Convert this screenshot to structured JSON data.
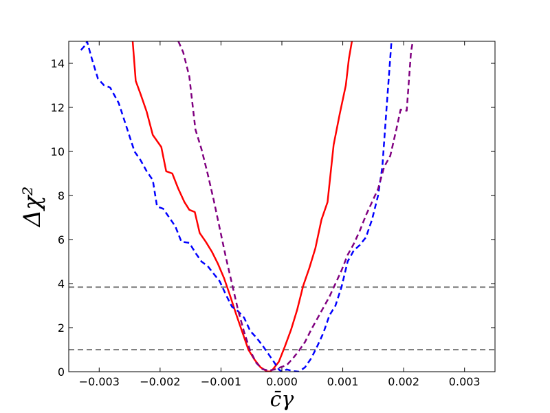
{
  "chart_data": {
    "type": "line",
    "title": "",
    "xlabel": "c̄γ",
    "ylabel": "Δχ²",
    "xlim": [
      -0.0035,
      0.0035
    ],
    "ylim": [
      0,
      15
    ],
    "grid": false,
    "x_ticks": [
      -0.003,
      -0.002,
      -0.001,
      0.0,
      0.001,
      0.002,
      0.003
    ],
    "x_tick_labels": [
      "−0.003",
      "−0.002",
      "−0.001",
      "0.000",
      "0.001",
      "0.002",
      "0.003"
    ],
    "y_ticks": [
      0,
      2,
      4,
      6,
      8,
      10,
      12,
      14
    ],
    "y_tick_labels": [
      "0",
      "2",
      "4",
      "6",
      "8",
      "10",
      "12",
      "14"
    ],
    "reference_lines": [
      {
        "y": 3.84,
        "color": "#808080",
        "style": "dashed"
      },
      {
        "y": 1.0,
        "color": "#808080",
        "style": "dashed"
      }
    ],
    "series": [
      {
        "color": "#ff0000",
        "style": "solid",
        "points": [
          [
            -0.00245,
            15.0
          ],
          [
            -0.0024,
            13.2
          ],
          [
            -0.00232,
            12.6
          ],
          [
            -0.00222,
            11.8
          ],
          [
            -0.00212,
            10.75
          ],
          [
            -0.00198,
            10.2
          ],
          [
            -0.0019,
            9.1
          ],
          [
            -0.0018,
            9.0
          ],
          [
            -0.0017,
            8.3
          ],
          [
            -0.0016,
            7.7
          ],
          [
            -0.00152,
            7.35
          ],
          [
            -0.00143,
            7.25
          ],
          [
            -0.00135,
            6.3
          ],
          [
            -0.00125,
            5.9
          ],
          [
            -0.00115,
            5.45
          ],
          [
            -0.00105,
            4.9
          ],
          [
            -0.00095,
            4.25
          ],
          [
            -0.00085,
            3.45
          ],
          [
            -0.00075,
            2.6
          ],
          [
            -0.00065,
            1.8
          ],
          [
            -0.00055,
            1.0
          ],
          [
            -0.00045,
            0.55
          ],
          [
            -0.00035,
            0.2
          ],
          [
            -0.00025,
            0.02
          ],
          [
            -0.0002,
            0.0
          ],
          [
            -0.00015,
            0.1
          ],
          [
            -5e-05,
            0.45
          ],
          [
            5e-05,
            1.15
          ],
          [
            0.00015,
            1.9
          ],
          [
            0.00025,
            2.8
          ],
          [
            0.00035,
            3.9
          ],
          [
            0.00045,
            4.7
          ],
          [
            0.00055,
            5.6
          ],
          [
            0.00065,
            6.9
          ],
          [
            0.00075,
            7.7
          ],
          [
            0.00085,
            10.3
          ],
          [
            0.00095,
            11.7
          ],
          [
            0.00105,
            13.0
          ],
          [
            0.0011,
            14.2
          ],
          [
            0.00115,
            15.0
          ]
        ]
      },
      {
        "color": "#0000ff",
        "style": "dashed",
        "points": [
          [
            -0.0033,
            14.6
          ],
          [
            -0.00322,
            14.85
          ],
          [
            -0.0032,
            15.0
          ],
          [
            -0.00312,
            14.2
          ],
          [
            -0.00302,
            13.3
          ],
          [
            -0.00292,
            13.0
          ],
          [
            -0.00282,
            12.9
          ],
          [
            -0.00268,
            12.2
          ],
          [
            -0.00255,
            11.1
          ],
          [
            -0.00242,
            10.0
          ],
          [
            -0.00232,
            9.6
          ],
          [
            -0.00222,
            9.1
          ],
          [
            -0.00212,
            8.7
          ],
          [
            -0.00205,
            7.5
          ],
          [
            -0.00195,
            7.4
          ],
          [
            -0.00185,
            7.0
          ],
          [
            -0.00175,
            6.6
          ],
          [
            -0.00165,
            5.9
          ],
          [
            -0.00152,
            5.85
          ],
          [
            -0.00142,
            5.4
          ],
          [
            -0.00132,
            5.0
          ],
          [
            -0.00122,
            4.8
          ],
          [
            -0.00112,
            4.45
          ],
          [
            -0.00102,
            4.1
          ],
          [
            -0.00092,
            3.5
          ],
          [
            -0.00082,
            2.95
          ],
          [
            -0.00072,
            2.75
          ],
          [
            -0.00062,
            2.45
          ],
          [
            -0.00052,
            1.85
          ],
          [
            -0.00042,
            1.55
          ],
          [
            -0.00032,
            1.2
          ],
          [
            -0.00022,
            0.8
          ],
          [
            -0.00012,
            0.4
          ],
          [
            -5e-05,
            0.1
          ],
          [
            0.0,
            0.0
          ],
          [
            8e-05,
            0.1
          ],
          [
            0.00018,
            0.03
          ],
          [
            0.00028,
            0.0
          ],
          [
            0.00038,
            0.2
          ],
          [
            0.00048,
            0.6
          ],
          [
            0.00058,
            1.15
          ],
          [
            0.00068,
            1.75
          ],
          [
            0.00078,
            2.55
          ],
          [
            0.00088,
            3.0
          ],
          [
            0.00098,
            3.85
          ],
          [
            0.00108,
            5.0
          ],
          [
            0.00118,
            5.5
          ],
          [
            0.00128,
            5.75
          ],
          [
            0.00138,
            6.1
          ],
          [
            0.00148,
            6.9
          ],
          [
            0.00158,
            8.0
          ],
          [
            0.00165,
            9.3
          ],
          [
            0.00172,
            12.0
          ],
          [
            0.0018,
            15.0
          ]
        ]
      },
      {
        "color": "#800080",
        "style": "dashed",
        "points": [
          [
            -0.0017,
            15.0
          ],
          [
            -0.00162,
            14.5
          ],
          [
            -0.00152,
            13.4
          ],
          [
            -0.00142,
            11.0
          ],
          [
            -0.00132,
            10.1
          ],
          [
            -0.00122,
            9.0
          ],
          [
            -0.00112,
            7.8
          ],
          [
            -0.00102,
            6.5
          ],
          [
            -0.00092,
            5.2
          ],
          [
            -0.00082,
            4.0
          ],
          [
            -0.00072,
            2.8
          ],
          [
            -0.00062,
            1.8
          ],
          [
            -0.00052,
            0.95
          ],
          [
            -0.00042,
            0.4
          ],
          [
            -0.00032,
            0.12
          ],
          [
            -0.00022,
            0.05
          ],
          [
            -0.00012,
            0.1
          ],
          [
            -2e-05,
            0.2
          ],
          [
            8e-05,
            0.3
          ],
          [
            0.00018,
            0.6
          ],
          [
            0.00028,
            0.95
          ],
          [
            0.00038,
            1.35
          ],
          [
            0.00048,
            1.9
          ],
          [
            0.00058,
            2.4
          ],
          [
            0.00068,
            2.9
          ],
          [
            0.00078,
            3.4
          ],
          [
            0.00088,
            4.0
          ],
          [
            0.00098,
            4.6
          ],
          [
            0.00108,
            5.3
          ],
          [
            0.00118,
            5.8
          ],
          [
            0.00128,
            6.4
          ],
          [
            0.00138,
            7.1
          ],
          [
            0.00148,
            7.7
          ],
          [
            0.00158,
            8.3
          ],
          [
            0.00168,
            9.3
          ],
          [
            0.00178,
            9.8
          ],
          [
            0.00188,
            11.0
          ],
          [
            0.00195,
            11.9
          ],
          [
            0.00205,
            11.85
          ],
          [
            0.00212,
            14.5
          ],
          [
            0.00215,
            15.0
          ]
        ]
      }
    ]
  }
}
